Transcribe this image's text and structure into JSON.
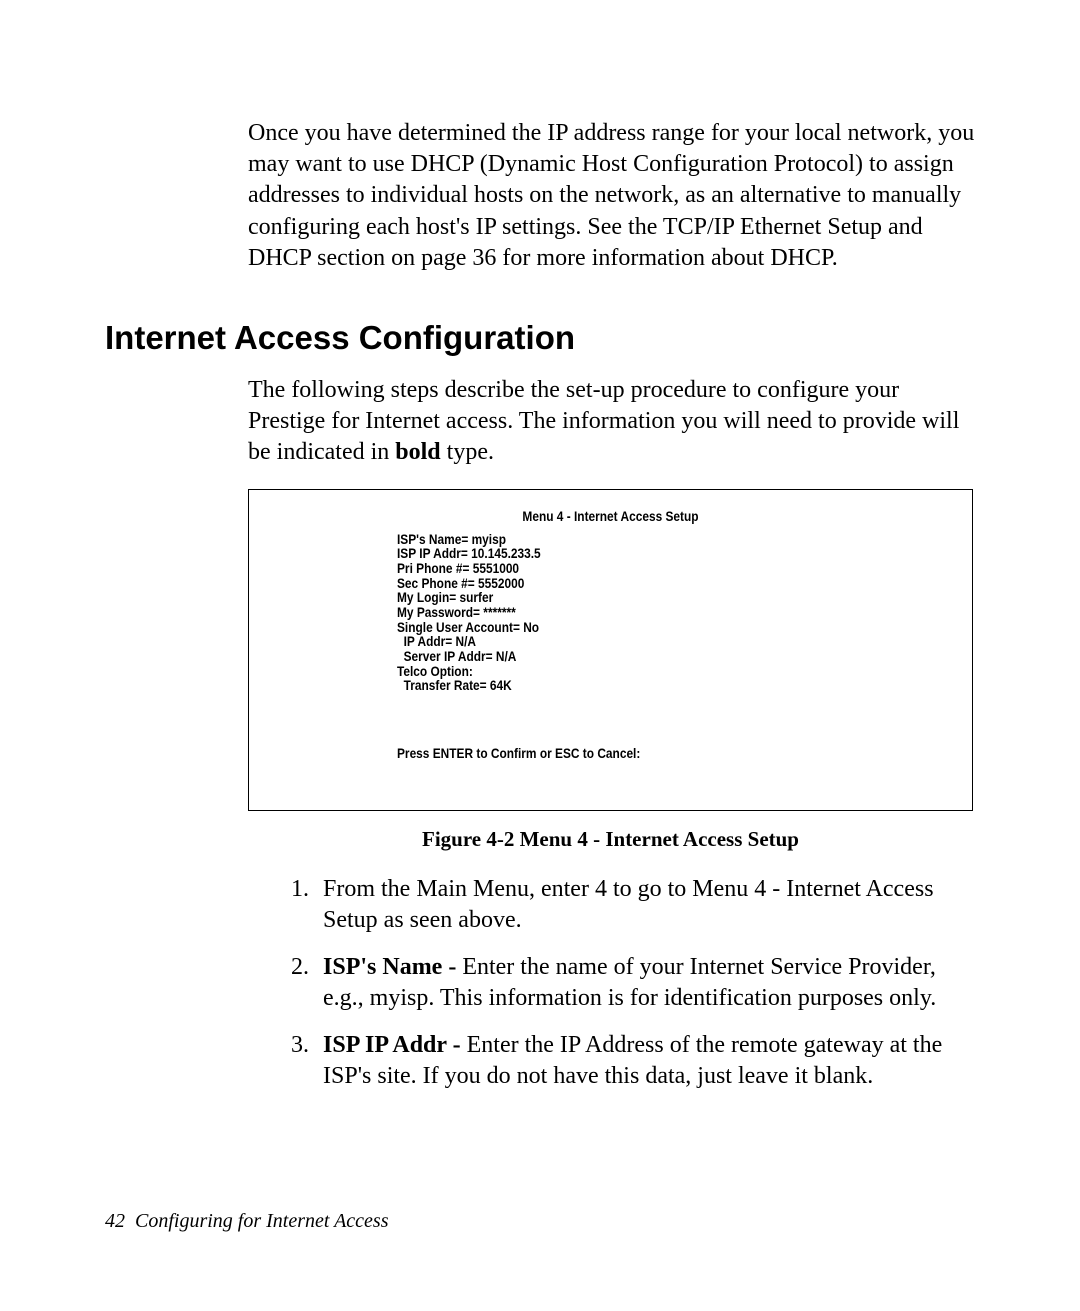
{
  "intro_paragraph": "Once you have determined the IP address range for your local network, you may want to use DHCP (Dynamic Host Configuration Protocol) to assign addresses to individual hosts on the network, as an alternative to manually configuring each host's IP settings. See the TCP/IP Ethernet Setup and DHCP section on page 36 for more information about DHCP.",
  "section_heading": "Internet Access Configuration",
  "section_intro_pre": "The following steps describe the set-up procedure to configure your Prestige for Internet access. The information you will need to provide will be indicated in ",
  "section_intro_bold": "bold",
  "section_intro_post": " type.",
  "terminal": {
    "title": "Menu 4 - Internet Access Setup",
    "lines": "ISP's Name= myisp\nISP IP Addr= 10.145.233.5\nPri Phone #= 5551000\nSec Phone #= 5552000\nMy Login= surfer\nMy Password= *******\nSingle User Account= No\n  IP Addr= N/A\n  Server IP Addr= N/A\nTelco Option:\n  Transfer Rate= 64K",
    "footer": "Press ENTER to Confirm or ESC to Cancel:"
  },
  "figure_caption": "Figure 4-2 Menu 4 - Internet Access Setup",
  "list": {
    "item1": "From the Main Menu, enter 4 to go to Menu 4 - Internet Access Setup as seen above.",
    "item2_bold": "ISP's Name - ",
    "item2_rest": "Enter the name of your Internet Service Provider, e.g., myisp. This information is for identification purposes only.",
    "item3_bold": "ISP IP Addr - ",
    "item3_rest": "Enter the IP Address of the remote gateway at the ISP's site. If you do not have this data, just leave it blank."
  },
  "footer": {
    "page_number": "42",
    "chapter_title": "Configuring for Internet Access"
  }
}
